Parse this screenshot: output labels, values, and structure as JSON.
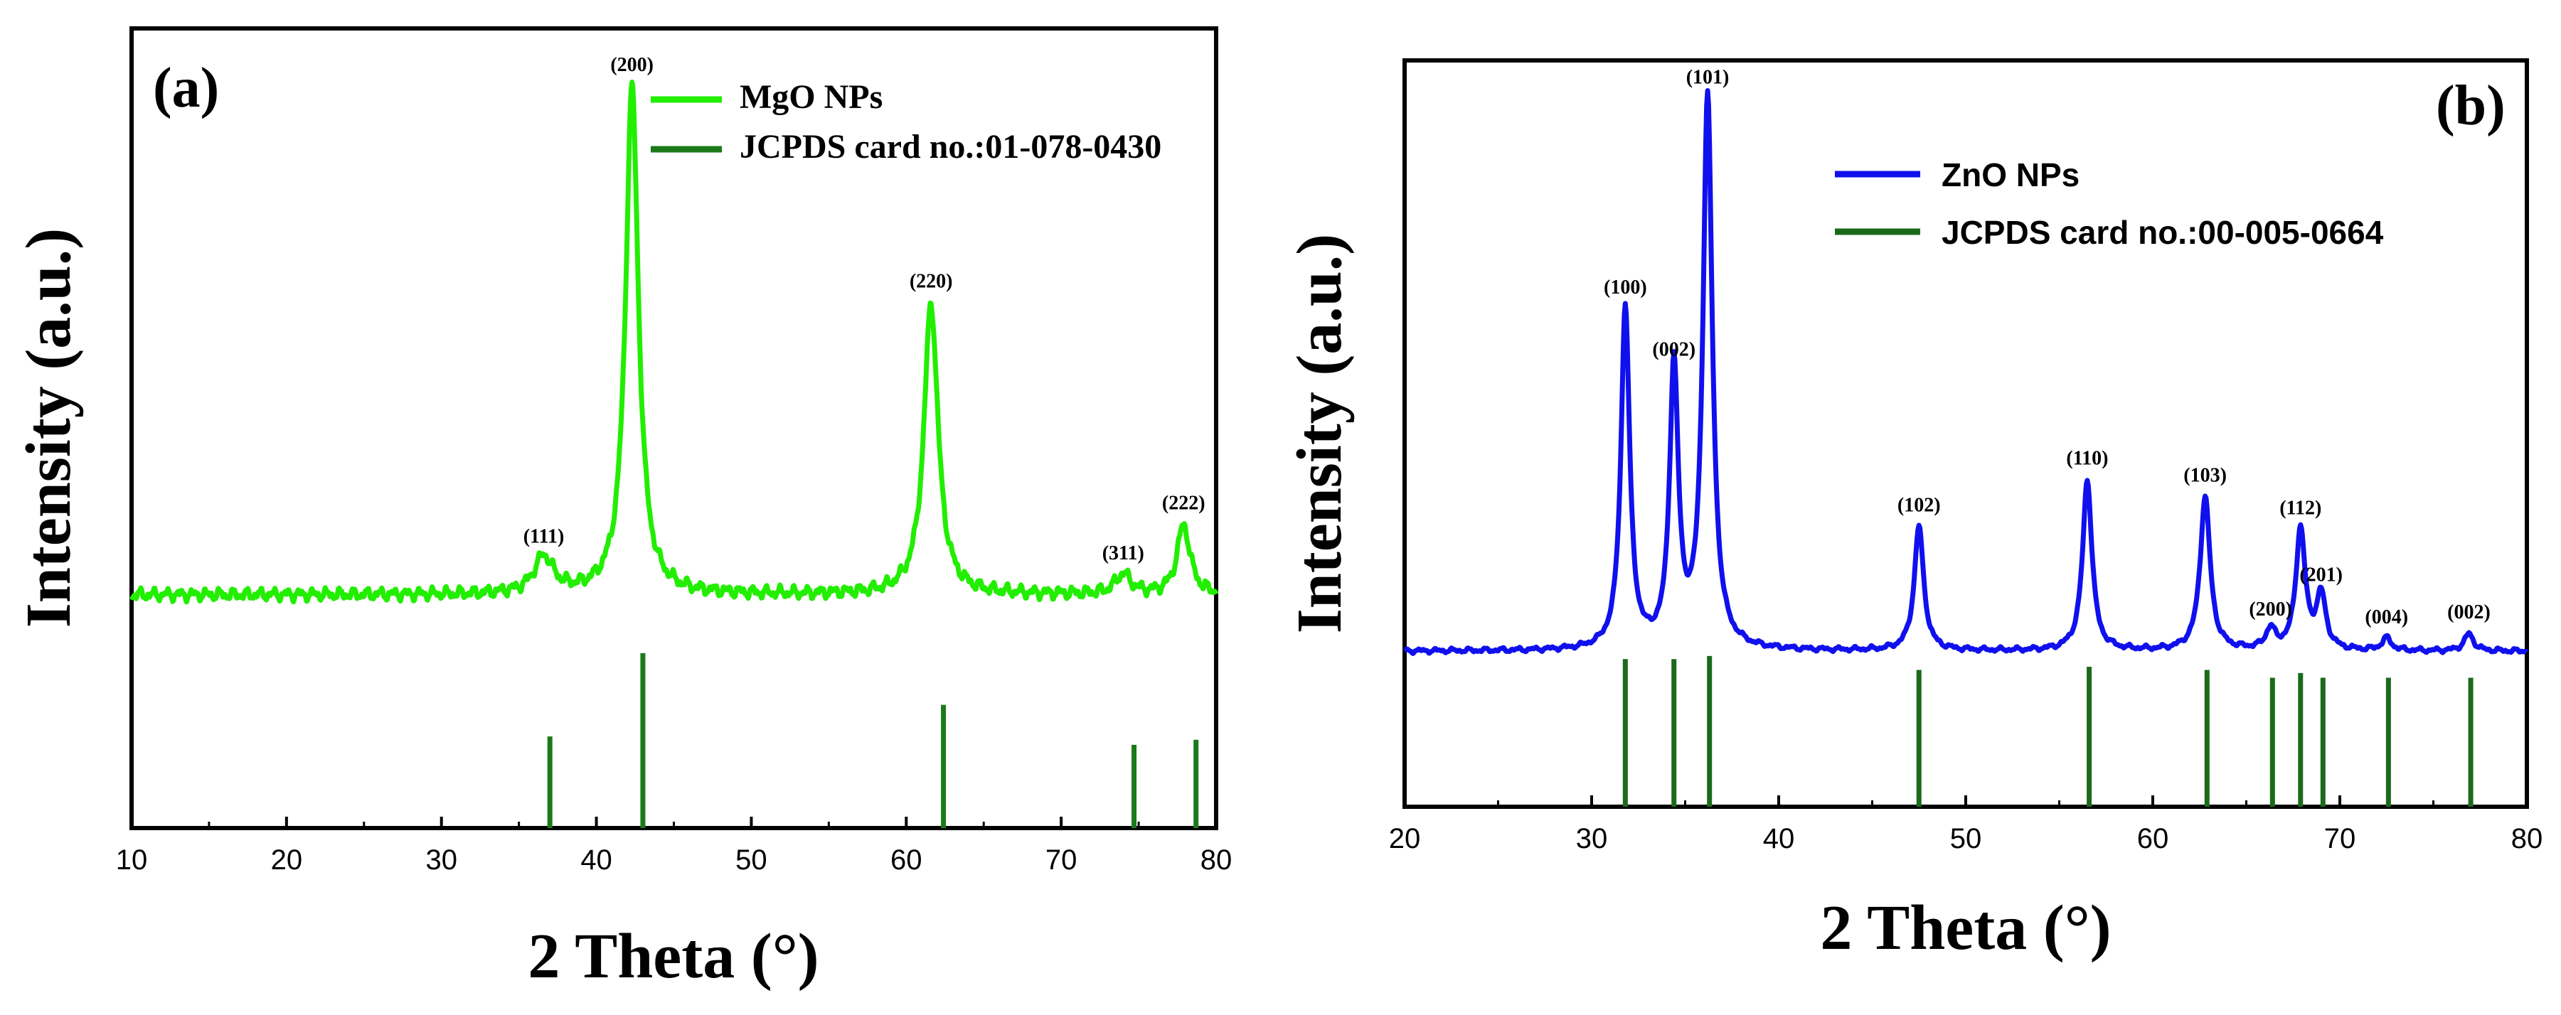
{
  "chart_data": [
    {
      "type": "line",
      "panel_label": "(a)",
      "xlabel": "2 Theta (°)",
      "ylabel": "Intensity (a.u.)",
      "xlim": [
        10,
        80
      ],
      "xticks": [
        10,
        20,
        30,
        40,
        50,
        60,
        70,
        80
      ],
      "ylim": [
        -1.4,
        3.4
      ],
      "series": [
        {
          "name": "MgO NPs",
          "color": "#22ee00",
          "kind": "line",
          "background": 0,
          "noise": 0.045,
          "peaks": [
            {
              "label": "(111)",
              "x": 36.6,
              "height": 0.22,
              "width": 0.75
            },
            {
              "label": "(200)",
              "x": 42.3,
              "height": 3.05,
              "width": 0.5
            },
            {
              "label": "(220)",
              "x": 61.6,
              "height": 1.75,
              "width": 0.55
            },
            {
              "label": "(311)",
              "x": 74.0,
              "height": 0.12,
              "width": 0.6
            },
            {
              "label": "(222)",
              "x": 77.9,
              "height": 0.42,
              "width": 0.5
            }
          ]
        },
        {
          "name": "JCPDS card no.:01-078-0430",
          "color": "#1a7a1a",
          "kind": "sticks",
          "base": -1.4,
          "sticks": [
            {
              "x": 37.0,
              "height": 0.55
            },
            {
              "x": 43.0,
              "height": 1.05
            },
            {
              "x": 62.4,
              "height": 0.74
            },
            {
              "x": 74.7,
              "height": 0.5
            },
            {
              "x": 78.7,
              "height": 0.53
            }
          ]
        }
      ],
      "legend_position": "top-center"
    },
    {
      "type": "line",
      "panel_label": "(b)",
      "xlabel": "2 Theta (°)",
      "ylabel": "Intensity (a.u.)",
      "xlim": [
        20,
        80
      ],
      "xticks": [
        20,
        30,
        40,
        50,
        60,
        70,
        80
      ],
      "ylim": [
        -1.0,
        3.8
      ],
      "series": [
        {
          "name": "ZnO NPs",
          "color": "#1010ee",
          "kind": "line",
          "background": 0,
          "noise": 0.018,
          "peaks": [
            {
              "label": "(100)",
              "x": 31.8,
              "height": 2.2,
              "width": 0.28
            },
            {
              "label": "(002)",
              "x": 34.4,
              "height": 1.8,
              "width": 0.28
            },
            {
              "label": "(101)",
              "x": 36.2,
              "height": 3.55,
              "width": 0.3
            },
            {
              "label": "(102)",
              "x": 47.5,
              "height": 0.8,
              "width": 0.3
            },
            {
              "label": "(110)",
              "x": 56.5,
              "height": 1.1,
              "width": 0.3
            },
            {
              "label": "(103)",
              "x": 62.8,
              "height": 0.99,
              "width": 0.32
            },
            {
              "label": "(200)",
              "x": 66.3,
              "height": 0.13,
              "width": 0.3
            },
            {
              "label": "(112)",
              "x": 67.9,
              "height": 0.78,
              "width": 0.3
            },
            {
              "label": "(201)",
              "x": 69.0,
              "height": 0.35,
              "width": 0.3
            },
            {
              "label": "(004)",
              "x": 72.5,
              "height": 0.08,
              "width": 0.3
            },
            {
              "label": "(002)",
              "x": 76.9,
              "height": 0.11,
              "width": 0.3
            }
          ]
        },
        {
          "name": "JCPDS card no.:00-005-0664",
          "color": "#1a6a1a",
          "kind": "sticks",
          "base": -1.0,
          "sticks": [
            {
              "x": 31.8,
              "height": 0.95
            },
            {
              "x": 34.4,
              "height": 0.95
            },
            {
              "x": 36.3,
              "height": 0.97
            },
            {
              "x": 47.5,
              "height": 0.88
            },
            {
              "x": 56.6,
              "height": 0.9
            },
            {
              "x": 62.9,
              "height": 0.88
            },
            {
              "x": 66.4,
              "height": 0.83
            },
            {
              "x": 67.9,
              "height": 0.86
            },
            {
              "x": 69.1,
              "height": 0.83
            },
            {
              "x": 72.6,
              "height": 0.83
            },
            {
              "x": 77.0,
              "height": 0.83
            }
          ]
        }
      ],
      "legend_position": "top-center"
    }
  ]
}
